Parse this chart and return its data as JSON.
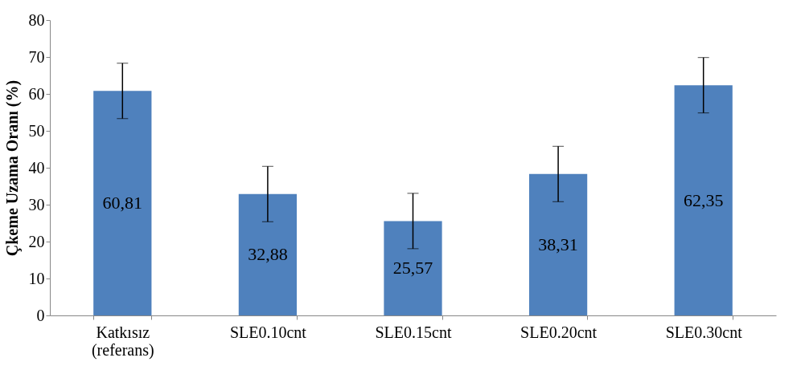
{
  "chart_data": {
    "type": "bar",
    "ylabel": "Çkeme Uzama Oranı (%)",
    "categories": [
      "Katkısız (referans)",
      "SLE0.10cnt",
      "SLE0.15cnt",
      "SLE0.20cnt",
      "SLE0.30cnt"
    ],
    "values": [
      60.81,
      32.88,
      25.57,
      38.31,
      62.35
    ],
    "value_labels": [
      "60,81",
      "32,88",
      "25,57",
      "38,31",
      "62,35"
    ],
    "errors": [
      7.5,
      7.5,
      7.5,
      7.5,
      7.5
    ],
    "color": "#4f81bd",
    "ylim": [
      0,
      80
    ],
    "yticks": [
      0,
      10,
      20,
      30,
      40,
      50,
      60,
      70,
      80
    ],
    "grid": false
  }
}
